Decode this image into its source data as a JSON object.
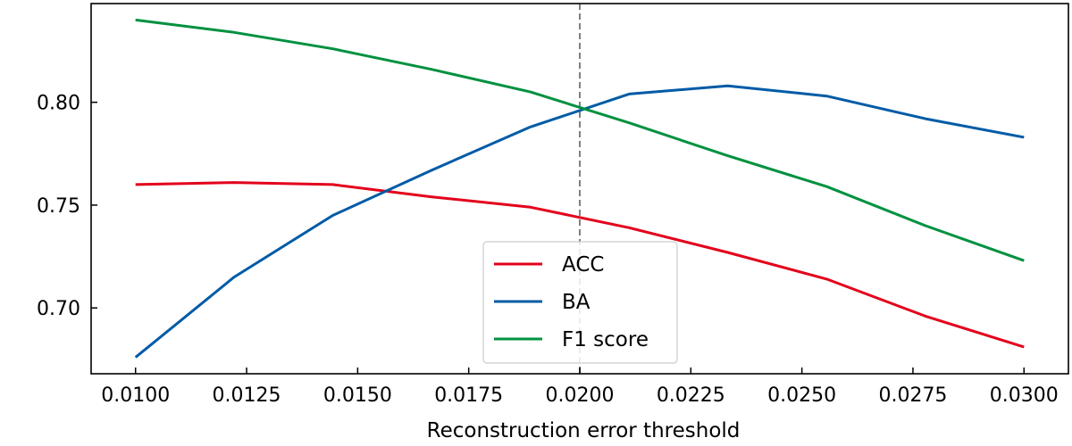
{
  "chart_data": {
    "type": "line",
    "title": "",
    "xlabel": "Reconstruction error threshold",
    "ylabel": "",
    "xlim": [
      0.009,
      0.031
    ],
    "ylim": [
      0.668,
      0.848
    ],
    "x_ticks": [
      "0.0100",
      "0.0125",
      "0.0150",
      "0.0175",
      "0.0200",
      "0.0225",
      "0.0250",
      "0.0275",
      "0.0300"
    ],
    "x_tick_values": [
      0.01,
      0.0125,
      0.015,
      0.0175,
      0.02,
      0.0225,
      0.025,
      0.0275,
      0.03
    ],
    "y_ticks": [
      "0.70",
      "0.75",
      "0.80"
    ],
    "y_tick_values": [
      0.7,
      0.75,
      0.8
    ],
    "x": [
      0.01,
      0.01222,
      0.01444,
      0.01667,
      0.01889,
      0.02111,
      0.02333,
      0.02556,
      0.02778,
      0.03
    ],
    "series": [
      {
        "name": "ACC",
        "color": "#e3001b",
        "values": [
          0.76,
          0.761,
          0.76,
          0.754,
          0.749,
          0.739,
          0.727,
          0.714,
          0.696,
          0.681
        ]
      },
      {
        "name": "BA",
        "color": "#005ba6",
        "values": [
          0.676,
          0.715,
          0.745,
          0.767,
          0.788,
          0.804,
          0.808,
          0.803,
          0.792,
          0.783
        ]
      },
      {
        "name": "F1 score",
        "color": "#00913f",
        "values": [
          0.84,
          0.834,
          0.826,
          0.816,
          0.805,
          0.79,
          0.774,
          0.759,
          0.74,
          0.723
        ]
      }
    ],
    "vline": {
      "x": 0.02,
      "color": "#808080",
      "style": "dashed"
    },
    "grid": false,
    "legend_position": "lower-center"
  }
}
